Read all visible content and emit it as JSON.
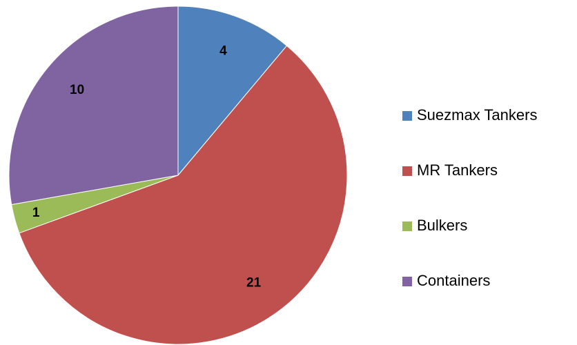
{
  "chart_data": {
    "type": "pie",
    "categories": [
      "Suezmax Tankers",
      "MR Tankers",
      "Bulkers",
      "Containers"
    ],
    "values": [
      4,
      21,
      1,
      10
    ],
    "colors": [
      "#4f81bd",
      "#c0504d",
      "#9bbb59",
      "#8064a2"
    ],
    "legend": "right"
  }
}
